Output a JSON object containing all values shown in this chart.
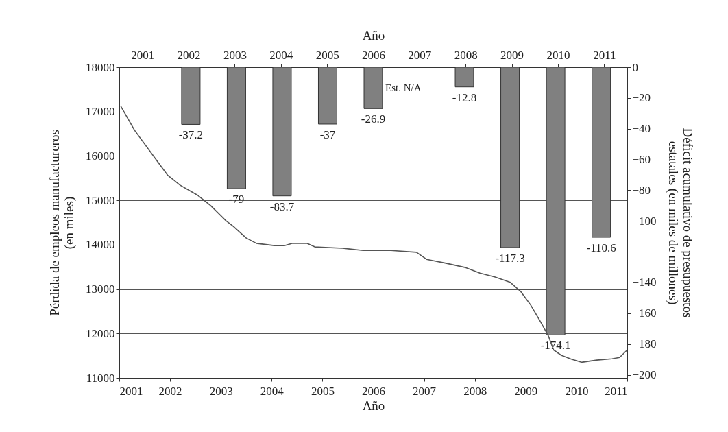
{
  "chart_data": {
    "type": "line",
    "xlabel": "Año",
    "x2label": "Año",
    "ylabel": "Pérdida de empleos manufactureros\n(en miles)",
    "y2label": "Déficit acumulativo de presupuestos\nestatales (en miles de millones)",
    "x2lim": [
      2000.5,
      2011.5
    ],
    "x2ticks": [
      2001,
      2002,
      2003,
      2004,
      2005,
      2006,
      2007,
      2008,
      2009,
      2010,
      2011
    ],
    "xlim": [
      2001,
      2011
    ],
    "xticks": [
      2001,
      2002,
      2003,
      2004,
      2005,
      2006,
      2007,
      2008,
      2009,
      2010,
      2011
    ],
    "ylim": [
      11000,
      18000
    ],
    "yticks": [
      11000,
      12000,
      13000,
      14000,
      15000,
      16000,
      17000,
      18000
    ],
    "y2lim": [
      -202,
      0
    ],
    "y2ticks": [
      0,
      -20,
      -40,
      -60,
      -80,
      -100,
      -140,
      -160,
      -180,
      -200
    ],
    "grid": "y",
    "annotations": [
      "Est. N/A"
    ],
    "series": [
      {
        "type": "bar",
        "axis": "y2",
        "color": "#808080",
        "x": [
          2002.36,
          2003.27,
          2004.18,
          2005.09,
          2006.0,
          2007.82,
          2008.73,
          2009.64,
          2010.55
        ],
        "values": [
          -37.2,
          -79,
          -83.7,
          -37,
          -26.9,
          -12.8,
          -117.3,
          -174.1,
          -110.6
        ],
        "value_labels": [
          "-37.2",
          "-79",
          "-83.7",
          "-37",
          "-26.9",
          "-12.8",
          "-117.3",
          "-174.1",
          "-110.6"
        ]
      },
      {
        "color": "#555555",
        "x": [
          2001.03,
          2001.3,
          2001.75,
          2001.95,
          2002.2,
          2002.55,
          2002.8,
          2003.1,
          2003.25,
          2003.5,
          2003.7,
          2004.05,
          2004.25,
          2004.4,
          2004.7,
          2004.85,
          2005.4,
          2005.8,
          2006.35,
          2006.85,
          2007.05,
          2007.4,
          2007.8,
          2008.1,
          2008.4,
          2008.7,
          2008.9,
          2009.1,
          2009.3,
          2009.45,
          2009.55,
          2009.7,
          2009.9,
          2010.1,
          2010.4,
          2010.7,
          2010.85,
          2011
        ],
        "values": [
          17120,
          16580,
          15880,
          15570,
          15340,
          15110,
          14880,
          14540,
          14410,
          14150,
          14030,
          13980,
          13980,
          14030,
          14030,
          13950,
          13920,
          13870,
          13870,
          13830,
          13670,
          13590,
          13490,
          13360,
          13270,
          13150,
          12950,
          12640,
          12250,
          11940,
          11630,
          11510,
          11420,
          11350,
          11400,
          11430,
          11460,
          11630
        ]
      }
    ]
  }
}
